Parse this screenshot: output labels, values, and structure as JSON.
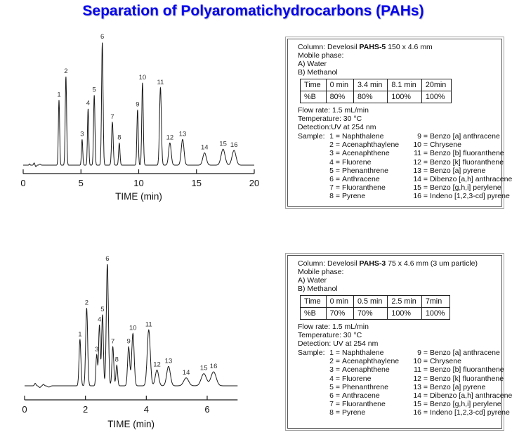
{
  "title": "Separation of Polyaromatichydrocarbons (PAHs)",
  "eq_sign": "=",
  "chart_data": [
    {
      "type": "line",
      "title": "",
      "xlabel": "TIME (min)",
      "ylabel": "",
      "x_ticks": [
        0,
        5,
        10,
        15,
        20
      ],
      "x_max": 20,
      "grid": false,
      "legend": "none",
      "peaks": [
        {
          "label": "1",
          "time_min": 3.1,
          "rel_height": 0.53,
          "width_min": 0.055
        },
        {
          "label": "2",
          "time_min": 3.7,
          "rel_height": 0.72,
          "width_min": 0.06
        },
        {
          "label": "3",
          "time_min": 5.1,
          "rel_height": 0.21,
          "width_min": 0.055
        },
        {
          "label": "4",
          "time_min": 5.62,
          "rel_height": 0.46,
          "width_min": 0.055
        },
        {
          "label": "5",
          "time_min": 6.15,
          "rel_height": 0.57,
          "width_min": 0.06
        },
        {
          "label": "6",
          "time_min": 6.85,
          "rel_height": 1.0,
          "width_min": 0.065
        },
        {
          "label": "7",
          "time_min": 7.72,
          "rel_height": 0.35,
          "width_min": 0.07
        },
        {
          "label": "8",
          "time_min": 8.32,
          "rel_height": 0.18,
          "width_min": 0.06
        },
        {
          "label": "9",
          "time_min": 9.9,
          "rel_height": 0.45,
          "width_min": 0.06
        },
        {
          "label": "10",
          "time_min": 10.33,
          "rel_height": 0.67,
          "width_min": 0.065
        },
        {
          "label": "11",
          "time_min": 11.88,
          "rel_height": 0.63,
          "width_min": 0.08
        },
        {
          "label": "12",
          "time_min": 12.7,
          "rel_height": 0.18,
          "width_min": 0.11
        },
        {
          "label": "13",
          "time_min": 13.8,
          "rel_height": 0.21,
          "width_min": 0.12
        },
        {
          "label": "14",
          "time_min": 15.7,
          "rel_height": 0.1,
          "width_min": 0.15
        },
        {
          "label": "15",
          "time_min": 17.3,
          "rel_height": 0.13,
          "width_min": 0.17
        },
        {
          "label": "16",
          "time_min": 18.25,
          "rel_height": 0.12,
          "width_min": 0.17
        }
      ],
      "noise": [
        {
          "time_min": 0.55,
          "rel_height": 0.01,
          "width_min": 0.04
        },
        {
          "time_min": 0.95,
          "rel_height": 0.018,
          "width_min": 0.05
        },
        {
          "time_min": 1.1,
          "rel_height": -0.012,
          "width_min": 0.05
        },
        {
          "time_min": 1.45,
          "rel_height": 0.008,
          "width_min": 0.06
        }
      ]
    },
    {
      "type": "line",
      "title": "",
      "xlabel": "TIME (min)",
      "ylabel": "",
      "x_ticks": [
        0,
        2,
        4,
        6
      ],
      "x_max": 7,
      "grid": false,
      "legend": "none",
      "peaks": [
        {
          "label": "1",
          "time_min": 1.82,
          "rel_height": 0.38,
          "width_min": 0.03
        },
        {
          "label": "2",
          "time_min": 2.04,
          "rel_height": 0.64,
          "width_min": 0.032
        },
        {
          "label": "3",
          "time_min": 2.37,
          "rel_height": 0.255,
          "width_min": 0.027
        },
        {
          "label": "4",
          "time_min": 2.46,
          "rel_height": 0.5,
          "width_min": 0.027
        },
        {
          "label": "5",
          "time_min": 2.56,
          "rel_height": 0.585,
          "width_min": 0.029
        },
        {
          "label": "6",
          "time_min": 2.72,
          "rel_height": 1.0,
          "width_min": 0.034
        },
        {
          "label": "7",
          "time_min": 2.9,
          "rel_height": 0.32,
          "width_min": 0.03
        },
        {
          "label": "8",
          "time_min": 3.03,
          "rel_height": 0.17,
          "width_min": 0.028
        },
        {
          "label": "9",
          "time_min": 3.42,
          "rel_height": 0.32,
          "width_min": 0.035
        },
        {
          "label": "10",
          "time_min": 3.56,
          "rel_height": 0.43,
          "width_min": 0.04
        },
        {
          "label": "11",
          "time_min": 4.08,
          "rel_height": 0.46,
          "width_min": 0.05
        },
        {
          "label": "12",
          "time_min": 4.35,
          "rel_height": 0.13,
          "width_min": 0.055
        },
        {
          "label": "13",
          "time_min": 4.73,
          "rel_height": 0.16,
          "width_min": 0.06
        },
        {
          "label": "14",
          "time_min": 5.31,
          "rel_height": 0.065,
          "width_min": 0.08
        },
        {
          "label": "15",
          "time_min": 5.89,
          "rel_height": 0.1,
          "width_min": 0.085
        },
        {
          "label": "16",
          "time_min": 6.21,
          "rel_height": 0.115,
          "width_min": 0.085
        }
      ],
      "noise": [
        {
          "time_min": 0.35,
          "rel_height": 0.02,
          "width_min": 0.025
        },
        {
          "time_min": 0.5,
          "rel_height": -0.014,
          "width_min": 0.03
        },
        {
          "time_min": 0.62,
          "rel_height": 0.012,
          "width_min": 0.025
        },
        {
          "time_min": 0.8,
          "rel_height": -0.01,
          "width_min": 0.04
        }
      ]
    }
  ],
  "boxes": [
    {
      "column_prefix": "Column: Develosil ",
      "column_bold": "PAHS-5",
      "column_suffix": " 150 x 4.6 mm",
      "mobile_phase": "Mobile phase:",
      "phase_a": "A) Water",
      "phase_b": "B) Methanol",
      "gradient": [
        [
          "Time",
          "0 min",
          "3.4 min",
          "8.1 min",
          "20min"
        ],
        [
          "%B",
          "80%",
          "80%",
          "100%",
          "100%"
        ]
      ],
      "flow": "Flow rate: 1.5 mL/min",
      "temperature": "Temperature: 30 °C",
      "detection": "Detection:UV at 254 nm",
      "sample_label": "Sample:",
      "sample_left": [
        {
          "n": "1",
          "name": "Naphthalene"
        },
        {
          "n": "2",
          "name": "Acenaphthaylene"
        },
        {
          "n": "3",
          "name": "Acenaphthene"
        },
        {
          "n": "4",
          "name": "Fluorene"
        },
        {
          "n": "5",
          "name": "Phenanthrene"
        },
        {
          "n": "6",
          "name": "Anthracene"
        },
        {
          "n": "7",
          "name": "Fluoranthene"
        },
        {
          "n": "8",
          "name": "Pyrene"
        }
      ],
      "sample_right": [
        {
          "n": "9",
          "name": "Benzo [a] anthracene"
        },
        {
          "n": "10",
          "name": "Chrysene"
        },
        {
          "n": "11",
          "name": "Benzo [b] fluoranthene"
        },
        {
          "n": "12",
          "name": "Benzo [k] fluoranthene"
        },
        {
          "n": "13",
          "name": "Benzo [a] pyrene"
        },
        {
          "n": "14",
          "name": "Dibenzo [a,h] anthracene"
        },
        {
          "n": "15",
          "name": "Benzo [g,h,i] perylene"
        },
        {
          "n": "16",
          "name": "Indeno [1,2,3-cd] pyrene"
        }
      ]
    },
    {
      "column_prefix": "Column: Develosil ",
      "column_bold": "PAHS-3",
      "column_suffix": " 75 x 4.6 mm (3 um particle)",
      "mobile_phase": "Mobile phase:",
      "phase_a": "A) Water",
      "phase_b": "B) Methanol",
      "gradient": [
        [
          "Time",
          "0 min",
          "0.5 min",
          "2.5 min",
          "7min"
        ],
        [
          "%B",
          "70%",
          "70%",
          "100%",
          "100%"
        ]
      ],
      "flow": "Flow rate: 1.5 mL/min",
      "temperature": "Temperature: 30 °C",
      "detection": "Detection: UV at 254 nm",
      "sample_label": "Sample:",
      "sample_left": [
        {
          "n": "1",
          "name": "Naphthalene"
        },
        {
          "n": "2",
          "name": "Acenaphthaylene"
        },
        {
          "n": "3",
          "name": "Acenaphthene"
        },
        {
          "n": "4",
          "name": "Fluorene"
        },
        {
          "n": "5",
          "name": "Phenanthrene"
        },
        {
          "n": "6",
          "name": "Anthracene"
        },
        {
          "n": "7",
          "name": "Fluoranthene"
        },
        {
          "n": "8",
          "name": "Pyrene"
        }
      ],
      "sample_right": [
        {
          "n": "9",
          "name": "Benzo [a] anthracene"
        },
        {
          "n": "10",
          "name": "Chrysene"
        },
        {
          "n": "11",
          "name": "Benzo [b] fluoranthene"
        },
        {
          "n": "12",
          "name": "Benzo [k] fluoranthene"
        },
        {
          "n": "13",
          "name": "Benzo [a] pyrene"
        },
        {
          "n": "14",
          "name": "Dibenzo [a,h] anthracene"
        },
        {
          "n": "15",
          "name": "Benzo [g,h,i] perylene"
        },
        {
          "n": "16",
          "name": "Indeno [1,2,3-cd] pyrene"
        }
      ]
    }
  ]
}
